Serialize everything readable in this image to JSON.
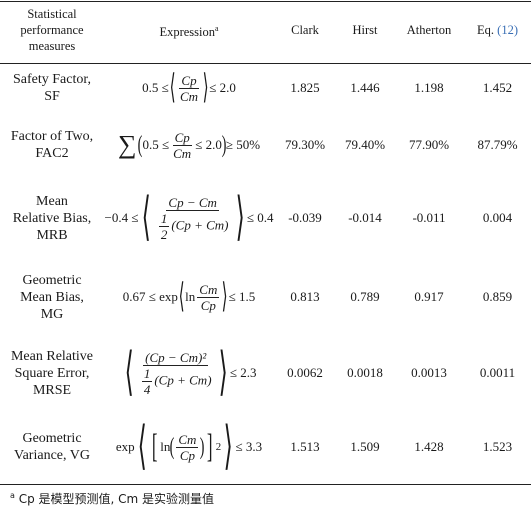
{
  "headers": {
    "measures": "Statistical performance measures",
    "expression": "Expression",
    "expression_note": "a",
    "clark": "Clark",
    "hirst": "Hirst",
    "atherton": "Atherton",
    "eq": "Eq.",
    "eq_ref": "(12)"
  },
  "rows": [
    {
      "label": "Safety Factor, SF",
      "clark": "1.825",
      "hirst": "1.446",
      "atherton": "1.198",
      "eq": "1.452"
    },
    {
      "label": "Factor of Two, FAC2",
      "clark": "79.30%",
      "hirst": "79.40%",
      "atherton": "77.90%",
      "eq": "87.79%"
    },
    {
      "label": "Mean Relative Bias, MRB",
      "clark": "-0.039",
      "hirst": "-0.014",
      "atherton": "-0.011",
      "eq": "0.004"
    },
    {
      "label": "Geometric Mean Bias, MG",
      "clark": "0.813",
      "hirst": "0.789",
      "atherton": "0.917",
      "eq": "0.859"
    },
    {
      "label": "Mean Relative Square Error, MRSE",
      "clark": "0.0062",
      "hirst": "0.0018",
      "atherton": "0.0013",
      "eq": "0.0011"
    },
    {
      "label": "Geometric Variance, VG",
      "clark": "1.513",
      "hirst": "1.509",
      "atherton": "1.428",
      "eq": "1.523"
    }
  ],
  "expressions": {
    "sf_left": "0.5 ≤",
    "sf_right": "≤ 2.0",
    "fac2_mid_left": "0.5 ≤",
    "fac2_mid_right": "≤ 2.0",
    "fac2_right": "≥ 50%",
    "mrb_left": "−0.4 ≤",
    "mrb_right": "≤ 0.4",
    "mg_left": "0.67 ≤ exp",
    "mg_ln": "ln",
    "mg_right": "≤ 1.5",
    "mrse_right": "≤ 2.3",
    "vg_left": "exp",
    "vg_ln": "ln",
    "vg_right": "≤ 3.3",
    "cp": "Cp",
    "cm": "Cm",
    "half": "1",
    "two": "2",
    "quarter": "1",
    "four": "4"
  },
  "footnote": {
    "marker": "a",
    "text": "Cp 是模型预测值, Cm 是实验测量值"
  }
}
